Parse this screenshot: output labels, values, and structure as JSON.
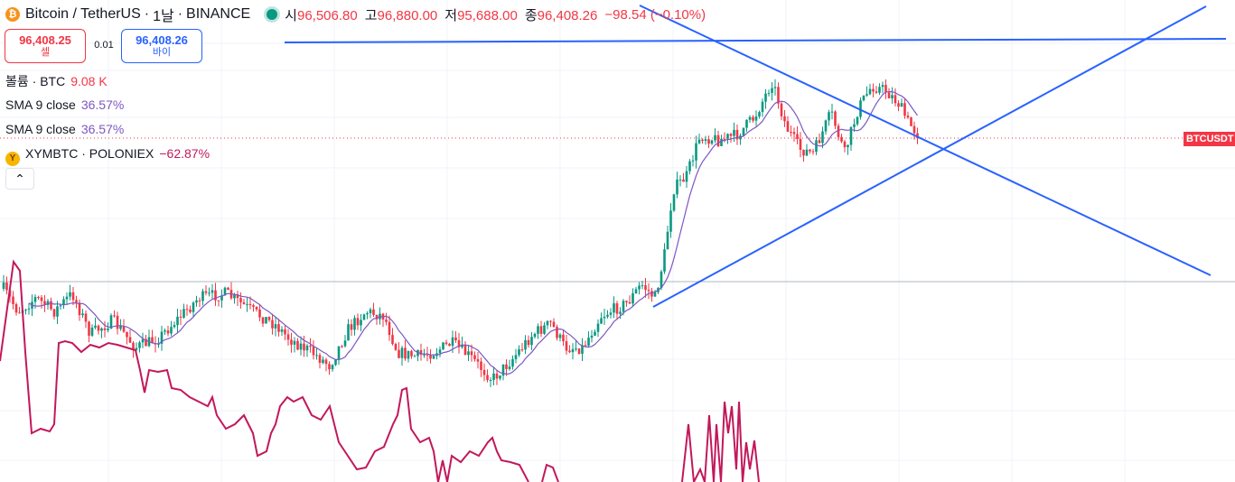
{
  "header": {
    "coin_icon": "bitcoin-icon",
    "symbol": "Bitcoin / TetherUS",
    "interval": "1날",
    "exchange": "BINANCE",
    "open_label": "시",
    "open_value": "96,506.80",
    "high_label": "고",
    "high_value": "96,880.00",
    "low_label": "저",
    "low_value": "95,688.00",
    "close_label": "종",
    "close_value": "96,408.26",
    "change": "−98.54 (−0.10%)",
    "live_status_color": "#089981"
  },
  "trade": {
    "sell_price": "96,408.25",
    "sell_label": "셀",
    "spread": "0.01",
    "buy_price": "96,408.26",
    "buy_label": "바이"
  },
  "indicators": [
    {
      "name": "볼륨 · BTC",
      "value": "9.08 K",
      "color": "#f23645"
    },
    {
      "name": "SMA 9 close",
      "value": "36.57%",
      "color": "#7e57c2"
    },
    {
      "name": "SMA 9 close",
      "value": "36.57%",
      "color": "#7e57c2"
    },
    {
      "name": "XYMBTC · POLONIEX",
      "value": "−62.87%",
      "color": "#c2185b",
      "icon": "symbol-logo-icon"
    }
  ],
  "collapse_icon": "chevron-up-icon",
  "price_tag": "BTCUSDT",
  "colors": {
    "up": "#089981",
    "down": "#f23645",
    "sma": "#7e57c2",
    "compare": "#c2185b",
    "trendline": "#2962ff",
    "price_line": "#f23645"
  },
  "chart_data": {
    "type": "candlestick",
    "title": "Bitcoin / TetherUS · 1날 · BINANCE",
    "series": [
      {
        "name": "BTCUSDT",
        "kind": "candlestick",
        "ohlc_last": {
          "open": 96506.8,
          "high": 96880.0,
          "low": 95688.0,
          "close": 96408.26
        }
      },
      {
        "name": "SMA 9 close",
        "kind": "line",
        "value_pct": "36.57%"
      },
      {
        "name": "XYMBTC · POLONIEX",
        "kind": "line",
        "value_pct": "−62.87%"
      }
    ],
    "volume": "9.08 K",
    "grid": true,
    "annotations": [
      "symmetric triangle trendlines",
      "horizontal resistance line"
    ]
  }
}
